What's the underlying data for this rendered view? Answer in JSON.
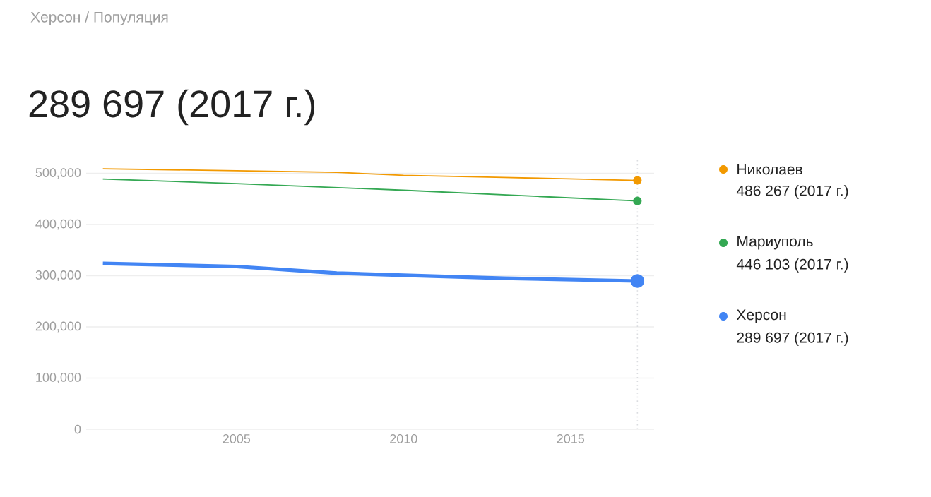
{
  "chart_data": {
    "type": "line",
    "title": "289 697 (2017 г.)",
    "annotations": [
      "Херсон / Популяция",
      "486 267 (2017 г.)",
      "446 103 (2017 г.)",
      "289 697 (2017 г.)"
    ],
    "series": [
      {
        "name": "Николаев",
        "color": "#f29900",
        "x": [
          2001,
          2005,
          2008,
          2010,
          2013,
          2017
        ],
        "values": [
          509000,
          505000,
          502000,
          496000,
          492000,
          486267
        ]
      },
      {
        "name": "Мариуполь",
        "color": "#34a853",
        "x": [
          2001,
          2005,
          2010,
          2014,
          2017
        ],
        "values": [
          489000,
          480000,
          467000,
          455000,
          446103
        ]
      },
      {
        "name": "Херсон",
        "color": "#4285f4",
        "x": [
          2001,
          2005,
          2008,
          2010,
          2013,
          2017
        ],
        "values": [
          324000,
          318000,
          305000,
          301000,
          295000,
          289697
        ]
      }
    ],
    "xlim": [
      2000.5,
      2017.5
    ],
    "ylim": [
      0,
      527000
    ],
    "xticks": [
      2005,
      2010,
      2015
    ],
    "yticks": [
      0,
      {
        "value": 100000,
        "label": "100,000"
      },
      {
        "value": 200000,
        "label": "200,000"
      },
      {
        "value": 300000,
        "label": "300,000"
      },
      {
        "value": 400000,
        "label": "400,000"
      },
      {
        "value": 500000,
        "label": "500,000"
      }
    ],
    "ref_lines": [
      {
        "axis": "x",
        "value": 2017,
        "color": "#dadce0",
        "line_style": "dotted"
      }
    ],
    "grid": "y",
    "legend": "right",
    "line_style": "solid"
  }
}
